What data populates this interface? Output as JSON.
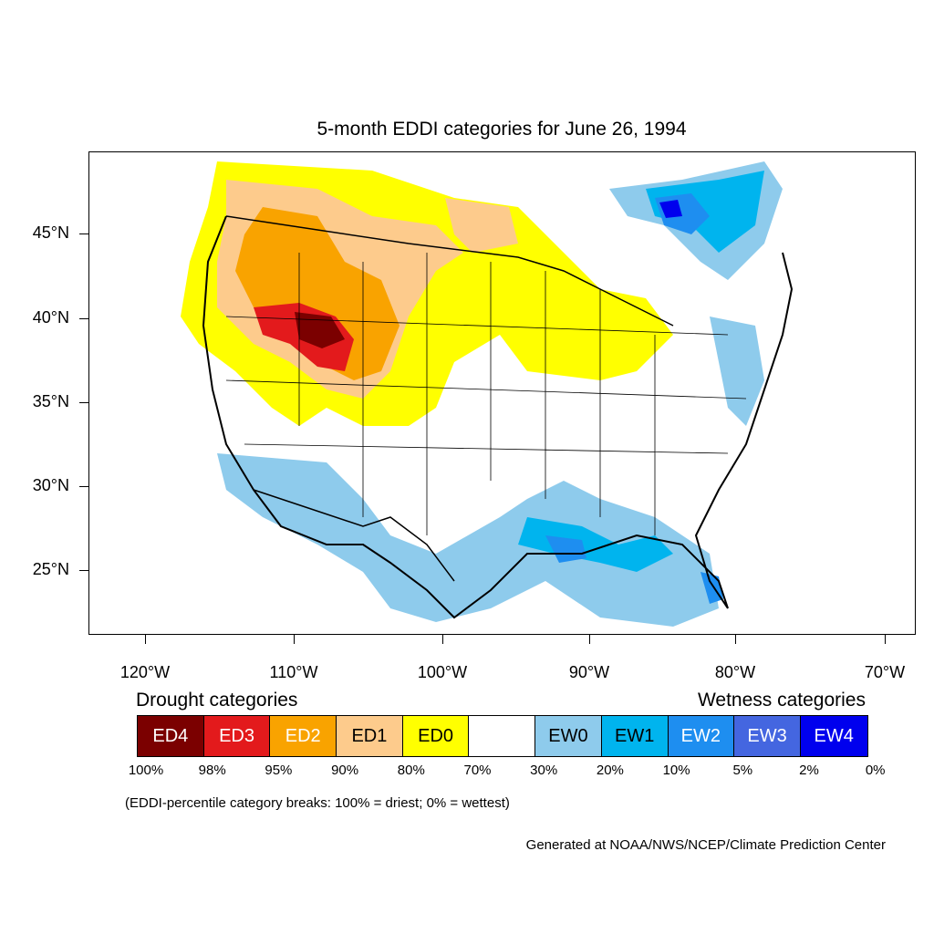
{
  "title": "5-month EDDI categories for June 26, 1994",
  "lat_labels": [
    "45°N",
    "40°N",
    "35°N",
    "30°N",
    "25°N"
  ],
  "lon_labels": [
    "120°W",
    "110°W",
    "100°W",
    "90°W",
    "80°W",
    "70°W"
  ],
  "legend": {
    "drought_heading": "Drought categories",
    "wetness_heading": "Wetness categories",
    "categories": [
      {
        "label": "ED4",
        "color": "#7b0000",
        "text_color": "#ffffff"
      },
      {
        "label": "ED3",
        "color": "#e31a1c",
        "text_color": "#ffffff"
      },
      {
        "label": "ED2",
        "color": "#f9a300",
        "text_color": "#ffffff"
      },
      {
        "label": "ED1",
        "color": "#fdcb8c",
        "text_color": "#000000"
      },
      {
        "label": "ED0",
        "color": "#ffff00",
        "text_color": "#000000"
      },
      {
        "label": "",
        "color": "#ffffff",
        "text_color": "#000000"
      },
      {
        "label": "EW0",
        "color": "#8ecbec",
        "text_color": "#000000"
      },
      {
        "label": "EW1",
        "color": "#00b4ee",
        "text_color": "#000000"
      },
      {
        "label": "EW2",
        "color": "#1e8ef0",
        "text_color": "#ffffff"
      },
      {
        "label": "EW3",
        "color": "#4466e0",
        "text_color": "#ffffff"
      },
      {
        "label": "EW4",
        "color": "#0000ee",
        "text_color": "#ffffff"
      }
    ],
    "percent_breaks": [
      "100%",
      "98%",
      "95%",
      "90%",
      "80%",
      "70%",
      "30%",
      "20%",
      "10%",
      "5%",
      "2%",
      "0%"
    ]
  },
  "note": "(EDDI-percentile category breaks: 100% = driest; 0% = wettest)",
  "credit": "Generated at NOAA/NWS/NCEP/Climate Prediction Center"
}
